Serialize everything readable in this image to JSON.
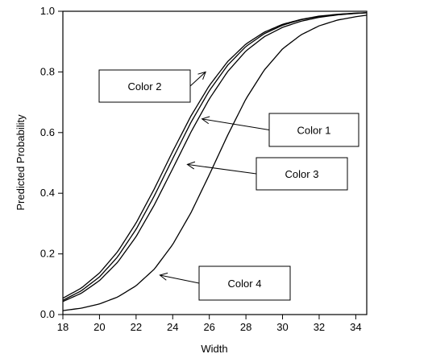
{
  "chart_data": {
    "type": "line",
    "title": "",
    "xlabel": "Width",
    "ylabel": "Predicted Probability",
    "xlim": [
      18,
      34.6
    ],
    "ylim": [
      0,
      1.0
    ],
    "x_ticks": [
      18,
      20,
      22,
      24,
      26,
      28,
      30,
      32,
      34
    ],
    "y_ticks": [
      0.0,
      0.2,
      0.4,
      0.6,
      0.8,
      1.0
    ],
    "y_tick_labels": [
      "0.0",
      "0.2",
      "0.4",
      "0.6",
      "0.8",
      "1.0"
    ],
    "grid": false,
    "legend": "none",
    "series": [
      {
        "name": "Color 1",
        "x": [
          18,
          19,
          20,
          21,
          22,
          23,
          24,
          25,
          26,
          27,
          28,
          29,
          30,
          31,
          32,
          33,
          34,
          34.6
        ],
        "y": [
          0.047,
          0.078,
          0.124,
          0.191,
          0.281,
          0.392,
          0.514,
          0.634,
          0.738,
          0.822,
          0.884,
          0.926,
          0.954,
          0.972,
          0.983,
          0.989,
          0.993,
          0.995
        ]
      },
      {
        "name": "Color 2",
        "x": [
          18,
          19,
          20,
          21,
          22,
          23,
          24,
          25,
          26,
          27,
          28,
          29,
          30,
          31,
          32,
          33,
          34,
          34.6
        ],
        "y": [
          0.054,
          0.087,
          0.137,
          0.208,
          0.302,
          0.415,
          0.538,
          0.655,
          0.755,
          0.834,
          0.892,
          0.931,
          0.957,
          0.973,
          0.984,
          0.99,
          0.994,
          0.995
        ]
      },
      {
        "name": "Color 3",
        "x": [
          18,
          19,
          20,
          21,
          22,
          23,
          24,
          25,
          26,
          27,
          28,
          29,
          30,
          31,
          32,
          33,
          34,
          34.6
        ],
        "y": [
          0.043,
          0.07,
          0.112,
          0.173,
          0.257,
          0.362,
          0.481,
          0.602,
          0.711,
          0.801,
          0.869,
          0.916,
          0.947,
          0.967,
          0.98,
          0.988,
          0.993,
          0.995
        ]
      },
      {
        "name": "Color 4",
        "x": [
          18,
          19,
          20,
          21,
          22,
          23,
          24,
          25,
          26,
          27,
          28,
          29,
          30,
          31,
          32,
          33,
          34,
          34.6
        ],
        "y": [
          0.013,
          0.021,
          0.035,
          0.058,
          0.095,
          0.15,
          0.231,
          0.336,
          0.461,
          0.591,
          0.711,
          0.806,
          0.876,
          0.922,
          0.952,
          0.971,
          0.982,
          0.987
        ]
      }
    ],
    "annotations": [
      {
        "text": "Color 2",
        "series": "Color 2",
        "x": 25.8,
        "y": 0.8
      },
      {
        "text": "Color 1",
        "series": "Color 1",
        "x": 25.6,
        "y": 0.645
      },
      {
        "text": "Color 3",
        "series": "Color 3",
        "x": 24.8,
        "y": 0.495
      },
      {
        "text": "Color 4",
        "series": "Color 4",
        "x": 23.3,
        "y": 0.13
      }
    ]
  }
}
